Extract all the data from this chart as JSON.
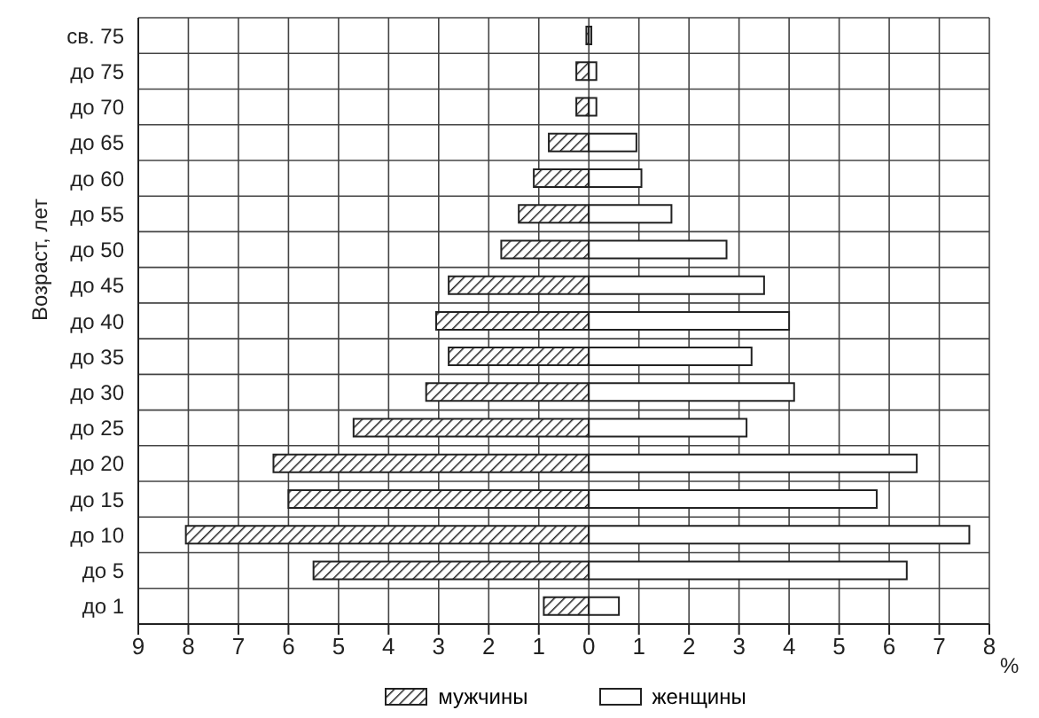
{
  "chart_data": {
    "type": "bar",
    "orientation": "horizontal",
    "stacked": true,
    "ylabel": "Возраст, лет",
    "xlabel": "%",
    "categories": [
      "св. 75",
      "до 75",
      "до 70",
      "до 65",
      "до 60",
      "до 55",
      "до 50",
      "до 45",
      "до 40",
      "до 35",
      "до 30",
      "до 25",
      "до 20",
      "до 15",
      "до 10",
      "до 5",
      "до 1"
    ],
    "series": [
      {
        "name": "мужчины",
        "color": "#222222",
        "values": [
          -0.05,
          -0.25,
          -0.25,
          -0.8,
          -1.1,
          -1.4,
          -1.75,
          -2.8,
          -3.05,
          -2.8,
          -3.25,
          -4.7,
          -6.3,
          -6.0,
          -8.05,
          -5.5,
          -0.9
        ]
      },
      {
        "name": "женщины",
        "color": "#ffffff",
        "values": [
          0.05,
          0.15,
          0.15,
          0.95,
          1.05,
          1.65,
          2.75,
          3.5,
          4.0,
          3.25,
          4.1,
          3.15,
          6.55,
          5.75,
          7.6,
          6.35,
          0.6
        ]
      }
    ],
    "xlim": [
      -9,
      8
    ],
    "xticks": [
      {
        "value": -9,
        "label": "9"
      },
      {
        "value": -8,
        "label": "8"
      },
      {
        "value": -7,
        "label": "7"
      },
      {
        "value": -6,
        "label": "6"
      },
      {
        "value": -5,
        "label": "5"
      },
      {
        "value": -4,
        "label": "4"
      },
      {
        "value": -3,
        "label": "3"
      },
      {
        "value": -2,
        "label": "2"
      },
      {
        "value": -1,
        "label": "1"
      },
      0,
      1,
      2,
      3,
      4,
      5,
      6,
      7,
      8
    ],
    "grid": true,
    "legend": "bottom"
  }
}
